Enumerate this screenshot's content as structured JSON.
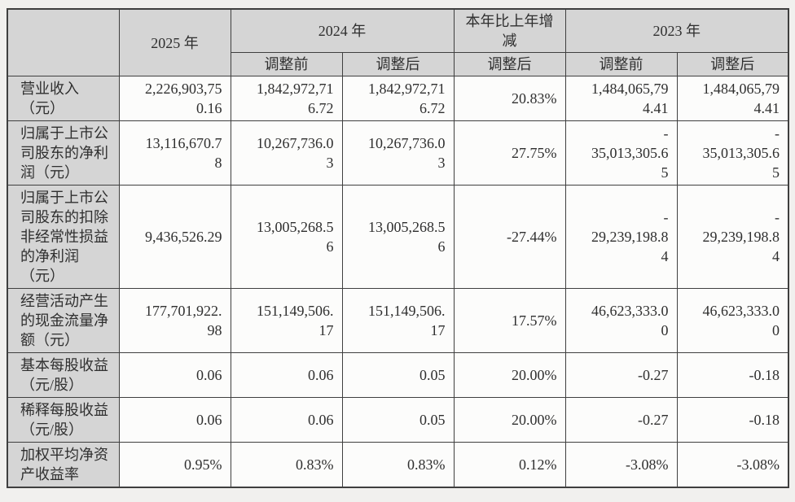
{
  "colors": {
    "page_bg": "#f1f0ee",
    "header_bg": "#d5d5d5",
    "cell_bg": "#fcfcfb",
    "border": "#3f3f3f",
    "text": "#2f2f2f"
  },
  "table": {
    "header": {
      "corner": "",
      "col_2025": "2025 年",
      "col_2024": "2024 年",
      "col_change": "本年比上年增\n减",
      "col_2023": "2023 年",
      "sub_2024_before": "调整前",
      "sub_2024_after": "调整后",
      "sub_change_after": "调整后",
      "sub_2023_before": "调整前",
      "sub_2023_after": "调整后"
    },
    "rows": [
      {
        "label": "营业收入\n（元）",
        "v2025": "2,226,903,75\n0.16",
        "v2024_before": "1,842,972,71\n6.72",
        "v2024_after": "1,842,972,71\n6.72",
        "change": "20.83%",
        "v2023_before": "1,484,065,79\n4.41",
        "v2023_after": "1,484,065,79\n4.41"
      },
      {
        "label": "归属于上市公\n司股东的净利\n润（元）",
        "v2025": "13,116,670.7\n8",
        "v2024_before": "10,267,736.0\n3",
        "v2024_after": "10,267,736.0\n3",
        "change": "27.75%",
        "v2023_before": "-\n35,013,305.6\n5",
        "v2023_after": "-\n35,013,305.6\n5"
      },
      {
        "label": "归属于上市公\n司股东的扣除\n非经常性损益\n的净利润\n（元）",
        "v2025": "9,436,526.29",
        "v2024_before": "13,005,268.5\n6",
        "v2024_after": "13,005,268.5\n6",
        "change": "-27.44%",
        "v2023_before": "-\n29,239,198.8\n4",
        "v2023_after": "-\n29,239,198.8\n4"
      },
      {
        "label": "经营活动产生\n的现金流量净\n额（元）",
        "v2025": "177,701,922.\n98",
        "v2024_before": "151,149,506.\n17",
        "v2024_after": "151,149,506.\n17",
        "change": "17.57%",
        "v2023_before": "46,623,333.0\n0",
        "v2023_after": "46,623,333.0\n0"
      },
      {
        "label": "基本每股收益\n（元/股）",
        "v2025": "0.06",
        "v2024_before": "0.06",
        "v2024_after": "0.05",
        "change": "20.00%",
        "v2023_before": "-0.27",
        "v2023_after": "-0.18"
      },
      {
        "label": "稀释每股收益\n（元/股）",
        "v2025": "0.06",
        "v2024_before": "0.06",
        "v2024_after": "0.05",
        "change": "20.00%",
        "v2023_before": "-0.27",
        "v2023_after": "-0.18"
      },
      {
        "label": "加权平均净资\n产收益率",
        "v2025": "0.95%",
        "v2024_before": "0.83%",
        "v2024_after": "0.83%",
        "change": "0.12%",
        "v2023_before": "-3.08%",
        "v2023_after": "-3.08%"
      }
    ]
  }
}
